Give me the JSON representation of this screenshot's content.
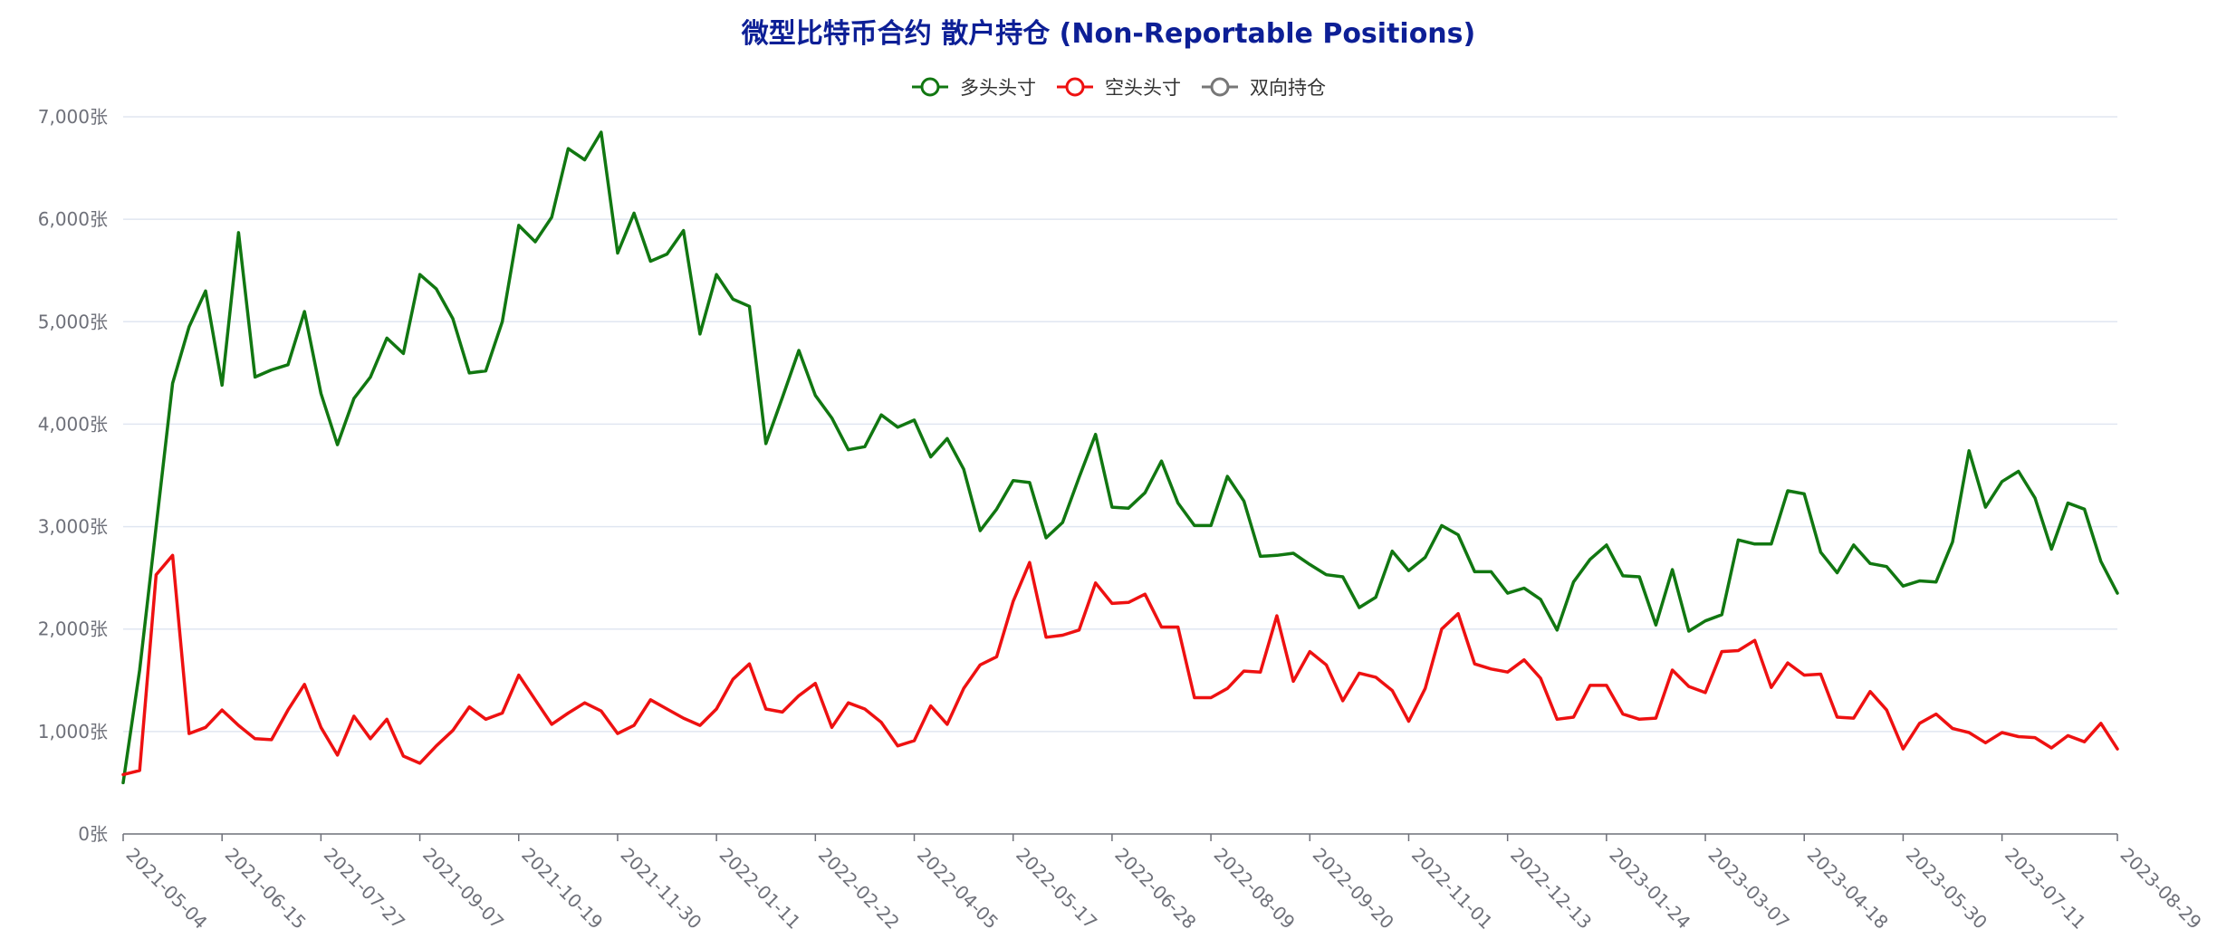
{
  "chart_data": {
    "type": "line",
    "title": "微型比特币合约 散户持仓 (Non-Reportable Positions)",
    "y_unit": "张",
    "ylim": [
      0,
      7000
    ],
    "y_ticks": [
      0,
      1000,
      2000,
      3000,
      4000,
      5000,
      6000,
      7000
    ],
    "y_tick_labels": [
      "0张",
      "1,000张",
      "2,000张",
      "3,000张",
      "4,000张",
      "5,000张",
      "6,000张",
      "7,000张"
    ],
    "x_tick_labels": [
      "2021-05-04",
      "2021-06-15",
      "2021-07-27",
      "2021-09-07",
      "2021-10-19",
      "2021-11-30",
      "2022-01-11",
      "2022-02-22",
      "2022-04-05",
      "2022-05-17",
      "2022-06-28",
      "2022-08-09",
      "2022-09-20",
      "2022-11-01",
      "2022-12-13",
      "2023-01-24",
      "2023-03-07",
      "2023-04-18",
      "2023-05-30",
      "2023-07-11",
      "2023-08-29"
    ],
    "x_start": "2021-05-04",
    "x_end": "2023-08-29",
    "grid": true,
    "legend_position": "top-center",
    "series": [
      {
        "name": "多头头寸",
        "color": "#117711",
        "values": [
          500,
          1600,
          3000,
          4400,
          4950,
          5300,
          4380,
          5870,
          4460,
          4530,
          4580,
          5100,
          4300,
          3800,
          4250,
          4460,
          4840,
          4690,
          5460,
          5320,
          5030,
          4500,
          4520,
          5000,
          5940,
          5780,
          6020,
          6690,
          6580,
          6850,
          5670,
          6060,
          5590,
          5660,
          5890,
          4880,
          5460,
          5220,
          5150,
          3810,
          4260,
          4720,
          4280,
          4060,
          3750,
          3780,
          4090,
          3970,
          4040,
          3680,
          3860,
          3560,
          2960,
          3170,
          3450,
          3430,
          2890,
          3040,
          3480,
          3900,
          3190,
          3180,
          3330,
          3640,
          3230,
          3010,
          3010,
          3490,
          3250,
          2710,
          2720,
          2740,
          2630,
          2530,
          2510,
          2210,
          2310,
          2760,
          2570,
          2700,
          3010,
          2920,
          2560,
          2560,
          2350,
          2400,
          2290,
          1990,
          2460,
          2680,
          2820,
          2520,
          2510,
          2040,
          2580,
          1980,
          2080,
          2140,
          2870,
          2830,
          2830,
          3350,
          3320,
          2750,
          2550,
          2820,
          2640,
          2610,
          2420,
          2470,
          2460,
          2850,
          3740,
          3190,
          3440,
          3540,
          3280,
          2780,
          3230,
          3170,
          2660,
          2350
        ]
      },
      {
        "name": "空头头寸",
        "color": "#ee1111",
        "values": [
          580,
          620,
          2530,
          2720,
          980,
          1040,
          1210,
          1060,
          930,
          920,
          1210,
          1460,
          1040,
          770,
          1150,
          930,
          1120,
          760,
          690,
          860,
          1010,
          1240,
          1120,
          1180,
          1550,
          1310,
          1070,
          1180,
          1280,
          1200,
          980,
          1060,
          1310,
          1220,
          1130,
          1060,
          1220,
          1510,
          1660,
          1220,
          1190,
          1350,
          1470,
          1040,
          1280,
          1220,
          1090,
          860,
          910,
          1250,
          1070,
          1420,
          1650,
          1730,
          2270,
          2650,
          1920,
          1940,
          1990,
          2450,
          2250,
          2260,
          2340,
          2020,
          2020,
          1330,
          1330,
          1420,
          1590,
          1580,
          2130,
          1490,
          1780,
          1650,
          1300,
          1570,
          1530,
          1400,
          1100,
          1420,
          2000,
          2150,
          1660,
          1610,
          1580,
          1700,
          1520,
          1120,
          1140,
          1450,
          1450,
          1170,
          1120,
          1130,
          1600,
          1440,
          1380,
          1780,
          1790,
          1890,
          1430,
          1670,
          1550,
          1560,
          1140,
          1130,
          1390,
          1210,
          830,
          1080,
          1170,
          1030,
          990,
          890,
          990,
          950,
          940,
          840,
          960,
          900,
          1080,
          830
        ]
      },
      {
        "name": "双向持仓",
        "color": "#777777",
        "values": []
      }
    ]
  }
}
